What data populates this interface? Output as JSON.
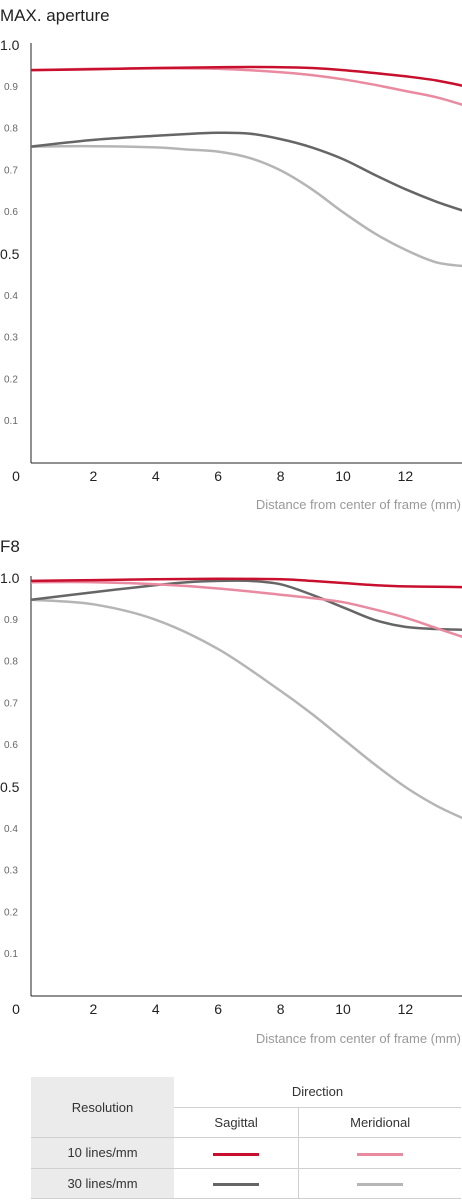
{
  "chart_data": [
    {
      "type": "line",
      "title": "MAX. aperture",
      "xlabel": "Distance from center of frame (mm)",
      "ylabel": "",
      "xlim": [
        0,
        14
      ],
      "ylim": [
        0,
        1
      ],
      "x_ticks": [
        "0",
        "2",
        "4",
        "6",
        "8",
        "10",
        "12"
      ],
      "y_ticks": [
        "1.0",
        "0.9",
        "0.8",
        "0.7",
        "0.6",
        "0.5",
        "0.4",
        "0.3",
        "0.2",
        "0.1"
      ],
      "grid": false,
      "series": [
        {
          "key": "s10",
          "color": "#c8102e",
          "x": [
            0,
            2,
            4,
            6,
            8,
            9,
            10,
            11,
            12,
            13,
            14
          ],
          "y": [
            0.94,
            0.942,
            0.945,
            0.947,
            0.947,
            0.945,
            0.94,
            0.933,
            0.925,
            0.915,
            0.9
          ]
        },
        {
          "key": "m10",
          "color": "#e98aa0",
          "x": [
            0,
            2,
            4,
            6,
            8,
            9,
            10,
            11,
            12,
            13,
            14
          ],
          "y": [
            0.94,
            0.943,
            0.944,
            0.943,
            0.935,
            0.928,
            0.918,
            0.905,
            0.89,
            0.875,
            0.853
          ]
        },
        {
          "key": "s30",
          "color": "#666666",
          "x": [
            0,
            2,
            4,
            5,
            6,
            7,
            8,
            9,
            10,
            11,
            12,
            13,
            14
          ],
          "y": [
            0.757,
            0.773,
            0.783,
            0.787,
            0.79,
            0.788,
            0.775,
            0.755,
            0.727,
            0.69,
            0.655,
            0.625,
            0.6
          ]
        },
        {
          "key": "m30",
          "color": "#b5b5b5",
          "x": [
            0,
            2,
            4,
            5,
            6,
            7,
            8,
            9,
            10,
            11,
            12,
            13,
            14
          ],
          "y": [
            0.757,
            0.758,
            0.755,
            0.75,
            0.745,
            0.73,
            0.7,
            0.655,
            0.6,
            0.55,
            0.51,
            0.48,
            0.47
          ]
        }
      ]
    },
    {
      "type": "line",
      "title": "F8",
      "xlabel": "Distance from center of frame (mm)",
      "ylabel": "",
      "xlim": [
        0,
        14
      ],
      "ylim": [
        0,
        1
      ],
      "x_ticks": [
        "0",
        "2",
        "4",
        "6",
        "8",
        "10",
        "12"
      ],
      "y_ticks": [
        "1.0",
        "0.9",
        "0.8",
        "0.7",
        "0.6",
        "0.5",
        "0.4",
        "0.3",
        "0.2",
        "0.1"
      ],
      "grid": false,
      "series": [
        {
          "key": "s10",
          "color": "#c8102e",
          "x": [
            0,
            2,
            4,
            6,
            8,
            9,
            10,
            11,
            12,
            13,
            14
          ],
          "y": [
            0.993,
            0.995,
            0.997,
            0.998,
            0.997,
            0.993,
            0.988,
            0.983,
            0.98,
            0.979,
            0.978
          ]
        },
        {
          "key": "m10",
          "color": "#e98aa0",
          "x": [
            0,
            2,
            4,
            6,
            8,
            9,
            10,
            11,
            12,
            13,
            14
          ],
          "y": [
            0.99,
            0.99,
            0.985,
            0.975,
            0.96,
            0.952,
            0.942,
            0.925,
            0.905,
            0.88,
            0.855
          ]
        },
        {
          "key": "s30",
          "color": "#666666",
          "x": [
            0,
            2,
            4,
            5,
            6,
            7,
            8,
            9,
            10,
            11,
            12,
            13,
            14
          ],
          "y": [
            0.948,
            0.966,
            0.983,
            0.99,
            0.993,
            0.993,
            0.985,
            0.96,
            0.93,
            0.9,
            0.883,
            0.878,
            0.876
          ]
        },
        {
          "key": "m30",
          "color": "#b5b5b5",
          "x": [
            0,
            2,
            4,
            6,
            8,
            9,
            10,
            11,
            12,
            13,
            14
          ],
          "y": [
            0.948,
            0.937,
            0.9,
            0.83,
            0.73,
            0.675,
            0.615,
            0.555,
            0.5,
            0.455,
            0.42
          ]
        }
      ]
    }
  ],
  "legend": {
    "resolution_header": "Resolution",
    "direction_header": "Direction",
    "sagittal": "Sagittal",
    "meridional": "Meridional",
    "rows": [
      {
        "label": "10 lines/mm",
        "sagittal_color": "#c8102e",
        "meridional_color": "#e98aa0"
      },
      {
        "label": "30 lines/mm",
        "sagittal_color": "#666666",
        "meridional_color": "#b5b5b5"
      }
    ]
  }
}
